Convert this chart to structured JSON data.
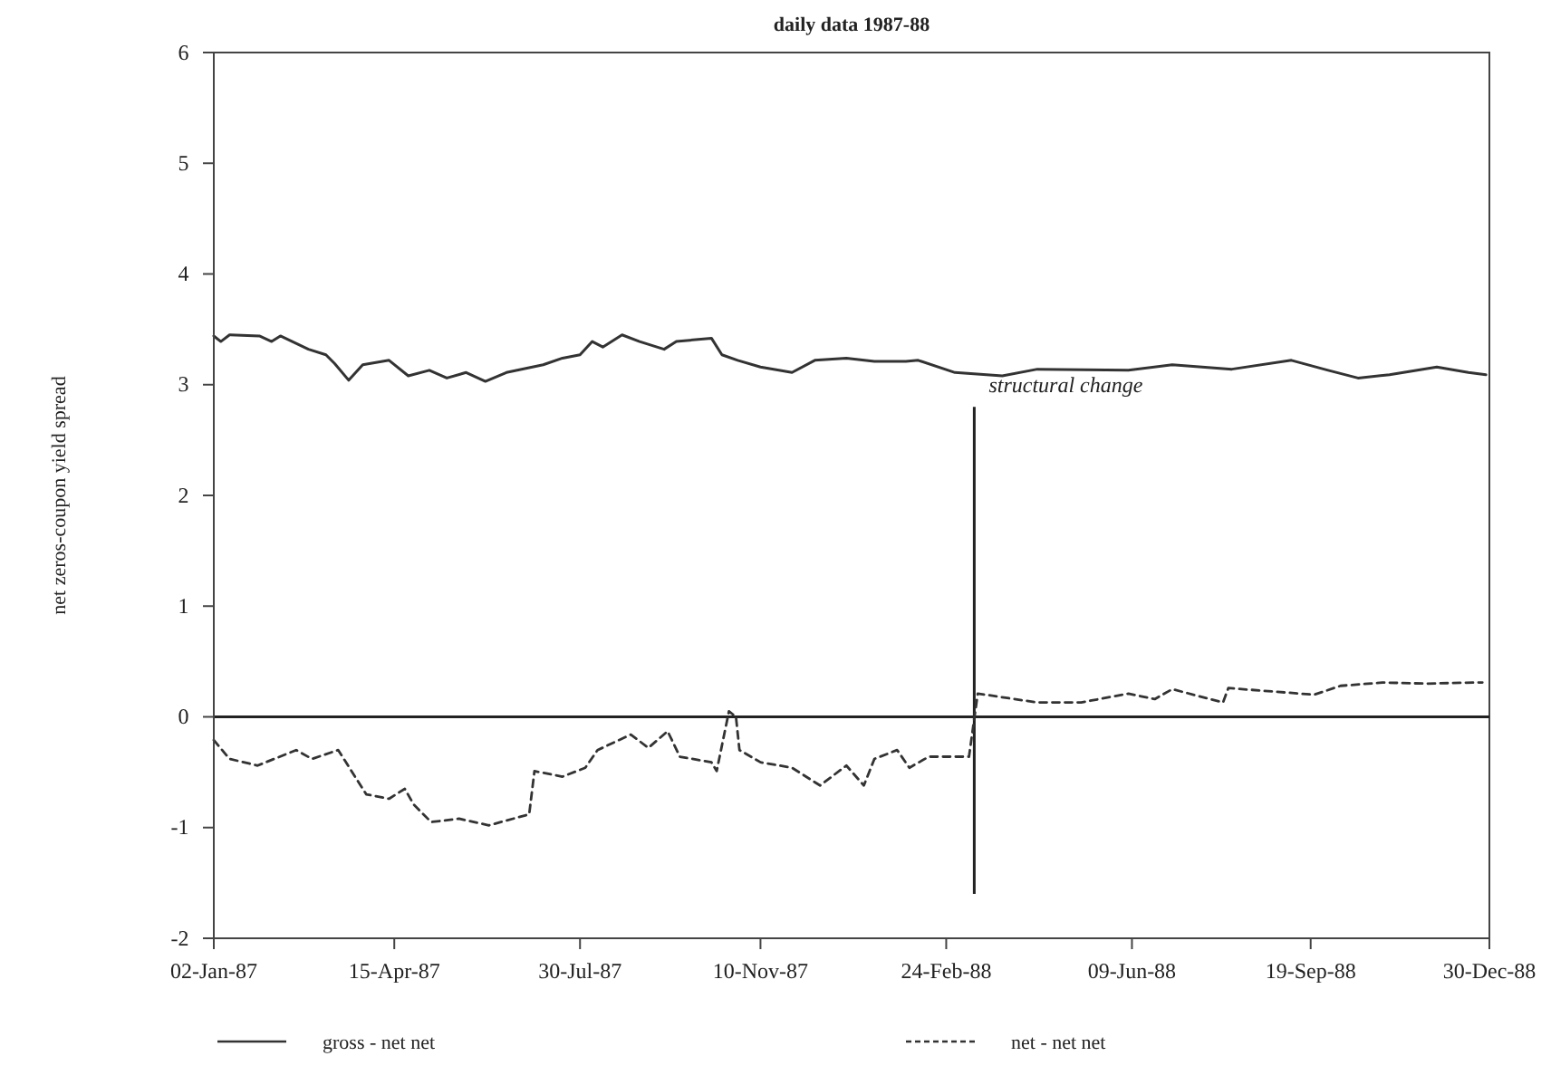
{
  "chart_data": {
    "type": "line",
    "subtitle": "daily data 1987-88",
    "ylabel": "net zeros-coupon yield spread",
    "xlim": [
      "1987-01-02",
      "1988-12-30"
    ],
    "xticks": [
      {
        "value": "1987-01-02",
        "label": "02-Jan-87"
      },
      {
        "value": "1987-04-15",
        "label": "15-Apr-87"
      },
      {
        "value": "1987-07-30",
        "label": "30-Jul-87"
      },
      {
        "value": "1987-11-10",
        "label": "10-Nov-87"
      },
      {
        "value": "1988-02-24",
        "label": "24-Feb-88"
      },
      {
        "value": "1988-06-09",
        "label": "09-Jun-88"
      },
      {
        "value": "1988-09-19",
        "label": "19-Sep-88"
      },
      {
        "value": "1988-12-30",
        "label": "30-Dec-88"
      }
    ],
    "ylim": [
      -2,
      6
    ],
    "yticks": [
      -2,
      -1,
      0,
      1,
      2,
      3,
      4,
      5,
      6
    ],
    "grid": false,
    "legend": "bottom",
    "marker": "none",
    "ref_lines": [
      {
        "axis": "y",
        "value": 0
      },
      {
        "axis": "x",
        "value": "1988-03-11",
        "label": "structural change"
      }
    ],
    "series": [
      {
        "name": "gross - net net",
        "color": "#333333",
        "line_style": "solid",
        "x": [
          "1987-01-02",
          "1987-01-06",
          "1987-01-11",
          "1987-01-28",
          "1987-02-04",
          "1987-02-09",
          "1987-02-25",
          "1987-03-07",
          "1987-03-12",
          "1987-03-20",
          "1987-03-28",
          "1987-04-12",
          "1987-04-23",
          "1987-05-05",
          "1987-05-15",
          "1987-05-26",
          "1987-06-06",
          "1987-06-18",
          "1987-07-09",
          "1987-07-20",
          "1987-07-30",
          "1987-08-06",
          "1987-08-12",
          "1987-08-23",
          "1987-09-02",
          "1987-09-16",
          "1987-09-23",
          "1987-10-13",
          "1987-10-19",
          "1987-10-28",
          "1987-11-10",
          "1987-11-28",
          "1987-12-11",
          "1987-12-29",
          "1988-01-14",
          "1988-02-01",
          "1988-02-08",
          "1988-02-29",
          "1988-03-27",
          "1988-04-16",
          "1988-06-07",
          "1988-07-02",
          "1988-08-05",
          "1988-09-08",
          "1988-09-29",
          "1988-10-16",
          "1988-11-03",
          "1988-11-30",
          "1988-12-18",
          "1988-12-28"
        ],
        "values": [
          3.44,
          3.39,
          3.45,
          3.44,
          3.39,
          3.44,
          3.32,
          3.27,
          3.19,
          3.04,
          3.18,
          3.22,
          3.08,
          3.13,
          3.06,
          3.11,
          3.03,
          3.11,
          3.18,
          3.24,
          3.27,
          3.39,
          3.34,
          3.45,
          3.39,
          3.32,
          3.39,
          3.42,
          3.27,
          3.22,
          3.16,
          3.11,
          3.22,
          3.24,
          3.21,
          3.21,
          3.22,
          3.11,
          3.08,
          3.14,
          3.13,
          3.18,
          3.14,
          3.22,
          3.13,
          3.06,
          3.09,
          3.16,
          3.11,
          3.09
        ]
      },
      {
        "name": "net - net net",
        "color": "#333333",
        "line_style": "dashed",
        "x": [
          "1987-01-02",
          "1987-01-11",
          "1987-01-27",
          "1987-02-18",
          "1987-02-27",
          "1987-03-14",
          "1987-03-30",
          "1987-04-12",
          "1987-04-21",
          "1987-04-26",
          "1987-05-06",
          "1987-05-22",
          "1987-06-08",
          "1987-07-01",
          "1987-07-04",
          "1987-07-20",
          "1987-08-02",
          "1987-08-09",
          "1987-08-28",
          "1987-09-07",
          "1987-09-18",
          "1987-09-25",
          "1987-10-13",
          "1987-10-16",
          "1987-10-23",
          "1987-10-27",
          "1987-10-29",
          "1987-11-10",
          "1987-11-28",
          "1987-12-14",
          "1987-12-29",
          "1988-01-08",
          "1988-01-14",
          "1988-01-27",
          "1988-02-03",
          "1988-02-14",
          "1988-03-08",
          "1988-03-13",
          "1988-04-16",
          "1988-05-11",
          "1988-06-07",
          "1988-06-22",
          "1988-07-02",
          "1988-07-31",
          "1988-08-03",
          "1988-09-21",
          "1988-10-06",
          "1988-10-30",
          "1988-11-24",
          "1988-12-21",
          "1988-12-26"
        ],
        "values": [
          -0.21,
          -0.38,
          -0.44,
          -0.3,
          -0.38,
          -0.3,
          -0.7,
          -0.74,
          -0.65,
          -0.79,
          -0.95,
          -0.92,
          -0.98,
          -0.88,
          -0.49,
          -0.54,
          -0.46,
          -0.3,
          -0.16,
          -0.28,
          -0.13,
          -0.36,
          -0.41,
          -0.49,
          0.05,
          0,
          -0.3,
          -0.41,
          -0.46,
          -0.62,
          -0.44,
          -0.62,
          -0.38,
          -0.3,
          -0.46,
          -0.36,
          -0.36,
          0.21,
          0.13,
          0.13,
          0.21,
          0.16,
          0.25,
          0.13,
          0.26,
          0.2,
          0.28,
          0.31,
          0.3,
          0.31,
          0.31
        ]
      }
    ]
  }
}
